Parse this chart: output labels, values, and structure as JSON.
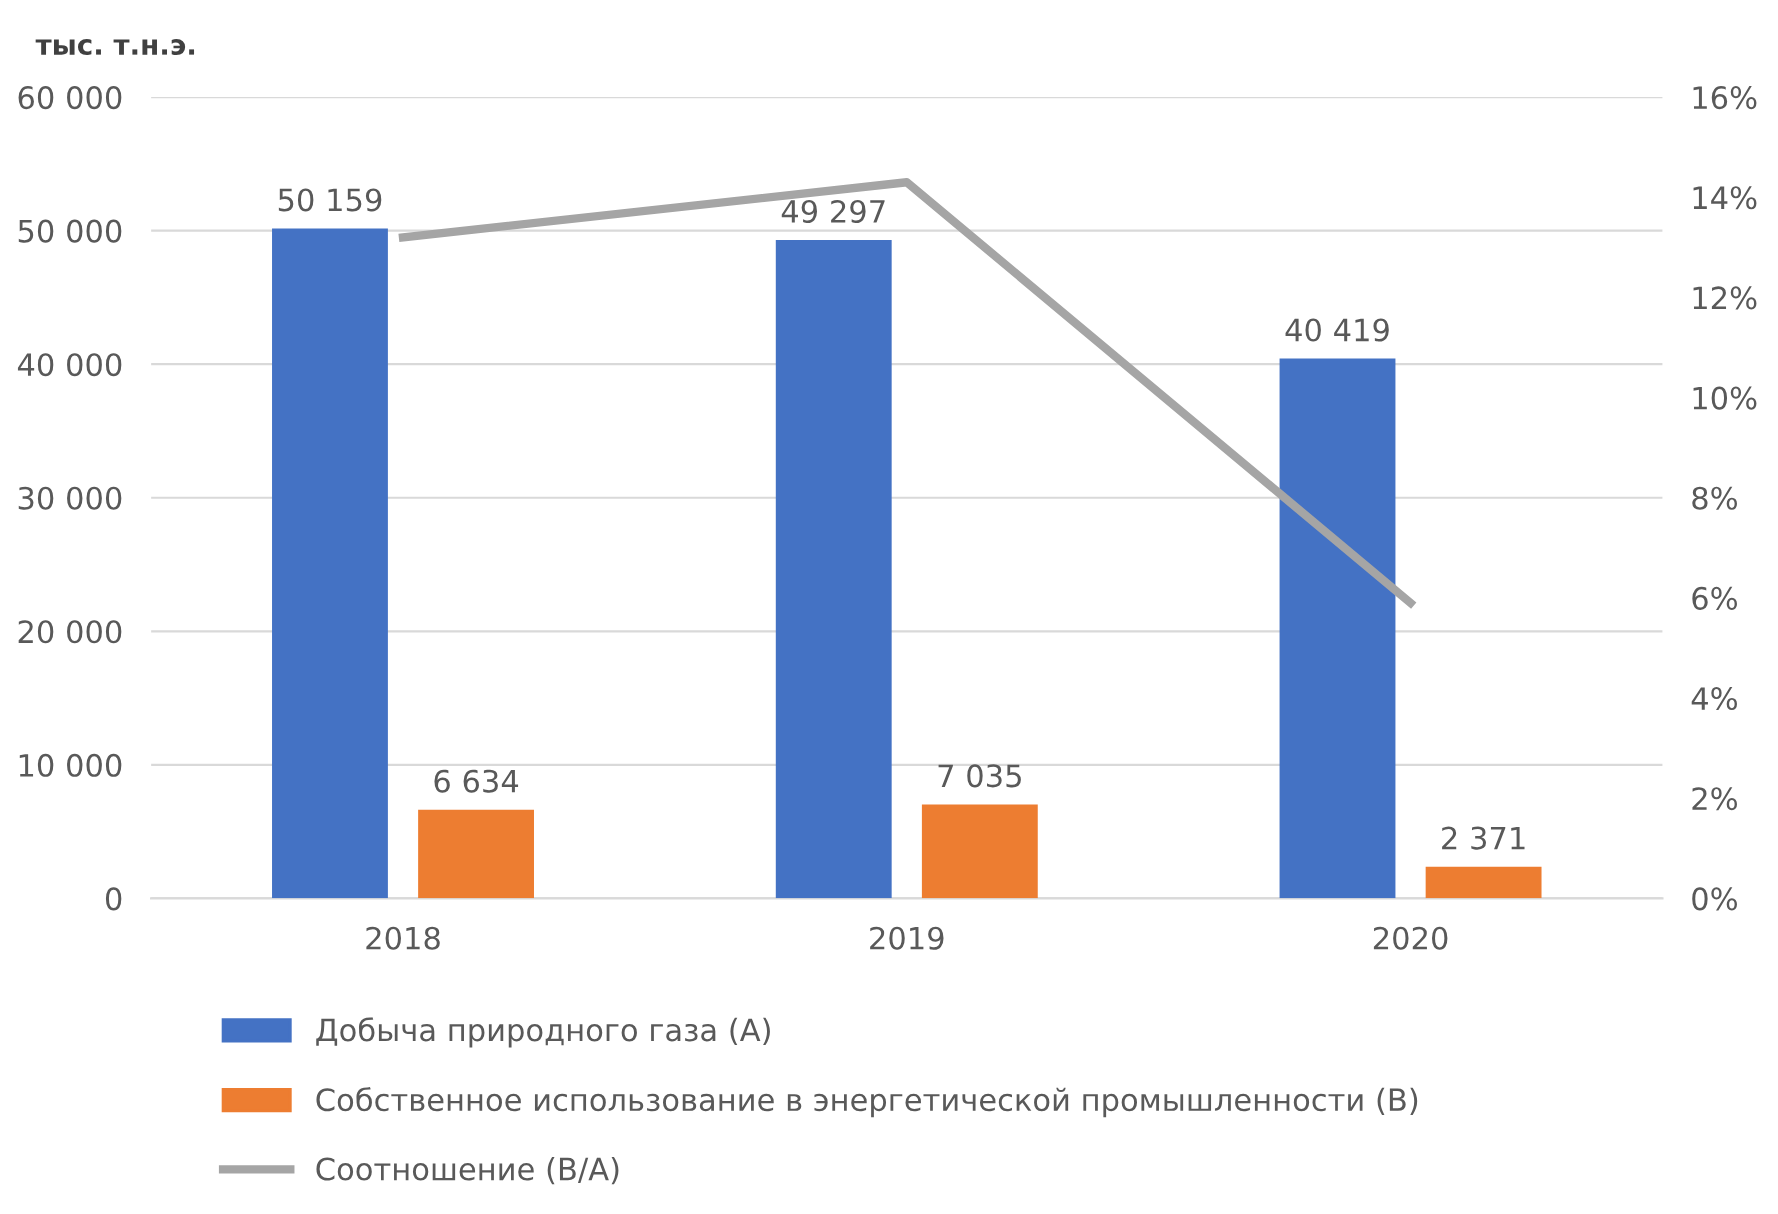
{
  "chart_data": {
    "type": "bar",
    "ylabel": "тыс. т.н.э.",
    "categories": [
      "2018",
      "2019",
      "2020"
    ],
    "series": [
      {
        "name": "Добыча природного газа (А)",
        "color": "#4472c4",
        "values": [
          50159,
          49297,
          40419
        ],
        "value_labels": [
          "50 159",
          "49 297",
          "40 419"
        ]
      },
      {
        "name": "Собственное использование в энергетической промышленности (В)",
        "color": "#ed7d31",
        "values": [
          6634,
          7035,
          2371
        ],
        "value_labels": [
          "6 634",
          "7 035",
          "2 371"
        ]
      },
      {
        "name": "Соотношение (В/А)",
        "type": "line",
        "axis": "y2",
        "color": "#a5a5a5",
        "values": [
          13.2,
          14.3,
          5.9
        ],
        "marker": "none"
      }
    ],
    "ylim": [
      0,
      60000
    ],
    "yticks": [
      {
        "value": 0,
        "label": "0"
      },
      {
        "value": 10000,
        "label": "10 000"
      },
      {
        "value": 20000,
        "label": "20 000"
      },
      {
        "value": 30000,
        "label": "30 000"
      },
      {
        "value": 40000,
        "label": "40 000"
      },
      {
        "value": 50000,
        "label": "50 000"
      },
      {
        "value": 60000,
        "label": "60 000"
      }
    ],
    "y2lim": [
      0,
      16
    ],
    "y2ticks": [
      {
        "value": 0,
        "label": "0%"
      },
      {
        "value": 2,
        "label": "2%"
      },
      {
        "value": 4,
        "label": "4%"
      },
      {
        "value": 6,
        "label": "6%"
      },
      {
        "value": 8,
        "label": "8%"
      },
      {
        "value": 10,
        "label": "10%"
      },
      {
        "value": 12,
        "label": "12%"
      },
      {
        "value": 14,
        "label": "14%"
      },
      {
        "value": 16,
        "label": "16%"
      }
    ],
    "grid": "y",
    "legend": "bottom"
  }
}
